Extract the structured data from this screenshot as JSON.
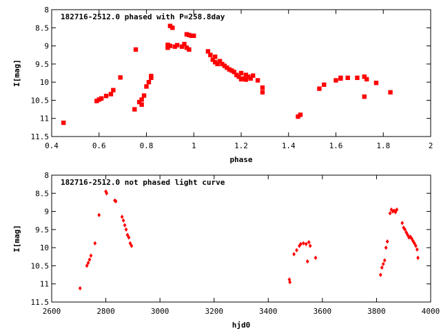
{
  "chart_data": [
    {
      "type": "scatter",
      "title": "182716-2512.0 phased with P=258.8day",
      "xlabel": "phase",
      "ylabel": "I[mag]",
      "xlim": [
        0.4,
        2.0
      ],
      "ylim": [
        11.5,
        8.0
      ],
      "y_inverted": true,
      "xticks": [
        "0.4",
        "0.6",
        "0.8",
        "1",
        "1.2",
        "1.4",
        "1.6",
        "1.8",
        "2"
      ],
      "yticks": [
        "8",
        "8.5",
        "9",
        "9.5",
        "10",
        "10.5",
        "11",
        "11.5"
      ],
      "grid": false,
      "marker_color": "#ff0000",
      "series": [
        {
          "x": [
            0.45,
            0.59,
            0.6,
            0.61,
            0.63,
            0.65,
            0.66,
            0.69,
            0.75,
            0.755,
            0.77,
            0.78,
            0.78,
            0.79,
            0.8,
            0.81,
            0.82,
            0.82,
            0.89,
            0.89,
            0.9,
            0.9,
            0.91,
            0.92,
            0.93,
            0.95,
            0.96,
            0.97,
            0.97,
            0.98,
            0.98,
            0.99,
            1.0,
            1.06,
            1.07,
            1.08,
            1.09,
            1.09,
            1.1,
            1.11,
            1.12,
            1.13,
            1.14,
            1.15,
            1.16,
            1.17,
            1.18,
            1.19,
            1.2,
            1.2,
            1.21,
            1.22,
            1.22,
            1.23,
            1.24,
            1.25,
            1.27,
            1.29,
            1.29,
            1.44,
            1.45,
            1.53,
            1.55,
            1.6,
            1.62,
            1.62,
            1.65,
            1.69,
            1.72,
            1.72,
            1.73,
            1.77,
            1.83
          ],
          "y": [
            11.12,
            10.52,
            10.48,
            10.45,
            10.38,
            10.33,
            10.22,
            9.87,
            10.75,
            9.1,
            10.55,
            10.48,
            10.62,
            10.37,
            10.12,
            10.0,
            9.83,
            9.88,
            9.05,
            8.97,
            8.45,
            9.0,
            8.5,
            9.02,
            8.98,
            9.02,
            8.95,
            8.68,
            9.05,
            8.7,
            9.1,
            8.72,
            8.72,
            9.15,
            9.25,
            9.38,
            9.45,
            9.3,
            9.5,
            9.42,
            9.5,
            9.55,
            9.6,
            9.65,
            9.68,
            9.72,
            9.8,
            9.85,
            9.75,
            9.92,
            9.9,
            9.8,
            9.93,
            9.85,
            9.9,
            9.82,
            9.95,
            10.15,
            10.28,
            10.95,
            10.9,
            10.18,
            10.07,
            9.95,
            9.88,
            9.9,
            9.88,
            9.88,
            9.85,
            10.4,
            9.92,
            10.02,
            10.28
          ]
        }
      ]
    },
    {
      "type": "scatter",
      "title": "182716-2512.0 not phased light curve",
      "xlabel": "hjd0",
      "ylabel": "I[mag]",
      "xlim": [
        2600,
        4000
      ],
      "ylim": [
        11.5,
        8.0
      ],
      "y_inverted": true,
      "xticks": [
        "2600",
        "2800",
        "3000",
        "3200",
        "3400",
        "3600",
        "3800",
        "4000"
      ],
      "yticks": [
        "8",
        "8.5",
        "9",
        "9.5",
        "10",
        "10.5",
        "11",
        "11.5"
      ],
      "grid": false,
      "marker_color": "#ff0000",
      "series": [
        {
          "x": [
            2705,
            2730,
            2735,
            2740,
            2745,
            2760,
            2775,
            2800,
            2803,
            2833,
            2837,
            2860,
            2865,
            2870,
            2875,
            2880,
            2885,
            2890,
            2895,
            3478,
            3480,
            3495,
            3505,
            3515,
            3520,
            3530,
            3540,
            3545,
            3550,
            3555,
            3575,
            3815,
            3820,
            3825,
            3830,
            3835,
            3840,
            3850,
            3855,
            3860,
            3865,
            3870,
            3875,
            3895,
            3900,
            3905,
            3910,
            3915,
            3920,
            3925,
            3930,
            3935,
            3940,
            3945,
            3950,
            3953
          ],
          "y": [
            11.12,
            10.5,
            10.42,
            10.33,
            10.22,
            9.88,
            9.1,
            8.45,
            8.5,
            8.7,
            8.72,
            9.15,
            9.25,
            9.38,
            9.5,
            9.65,
            9.72,
            9.88,
            9.95,
            10.88,
            10.95,
            10.18,
            10.07,
            9.95,
            9.9,
            9.88,
            9.9,
            10.38,
            9.85,
            9.95,
            10.28,
            10.75,
            10.55,
            10.45,
            10.35,
            10.0,
            9.83,
            9.05,
            8.95,
            9.0,
            8.98,
            9.02,
            8.95,
            9.32,
            9.45,
            9.5,
            9.58,
            9.65,
            9.72,
            9.7,
            9.75,
            9.82,
            9.88,
            9.95,
            10.05,
            10.28
          ]
        }
      ]
    }
  ]
}
